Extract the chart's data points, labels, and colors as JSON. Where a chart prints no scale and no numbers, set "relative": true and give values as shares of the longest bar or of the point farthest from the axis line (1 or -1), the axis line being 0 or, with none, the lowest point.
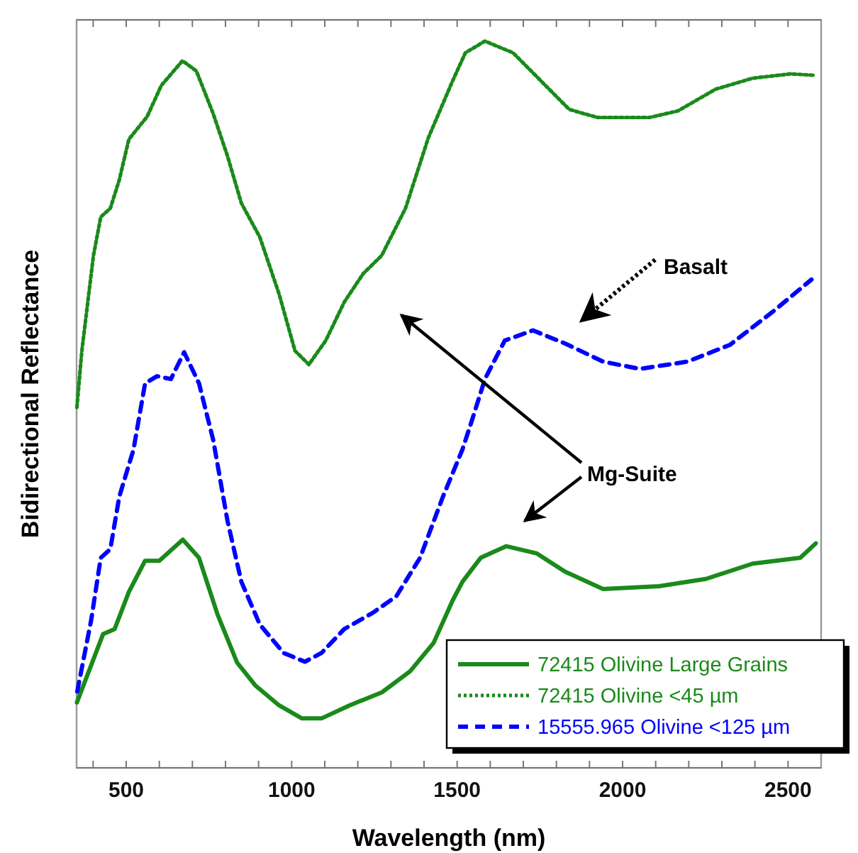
{
  "chart_data": {
    "type": "line",
    "relative": true,
    "xlabel": "Wavelength (nm)",
    "ylabel": "Bidirectional Reflectance",
    "xlim": [
      350,
      2600
    ],
    "xticks": [
      {
        "value": 400,
        "label": null
      },
      500,
      {
        "value": 600,
        "label": null
      },
      {
        "value": 700,
        "label": null
      },
      {
        "value": 800,
        "label": null
      },
      {
        "value": 900,
        "label": null
      },
      1000,
      {
        "value": 1100,
        "label": null
      },
      {
        "value": 1200,
        "label": null
      },
      {
        "value": 1300,
        "label": null
      },
      {
        "value": 1400,
        "label": null
      },
      1500,
      {
        "value": 1600,
        "label": null
      },
      {
        "value": 1700,
        "label": null
      },
      {
        "value": 1800,
        "label": null
      },
      {
        "value": 1900,
        "label": null
      },
      2000,
      {
        "value": 2100,
        "label": null
      },
      {
        "value": 2200,
        "label": null
      },
      {
        "value": 2300,
        "label": null
      },
      {
        "value": 2400,
        "label": null
      },
      2500
    ],
    "legend": "bottom right",
    "series": [
      {
        "name": "72415 Olivine Large Grains",
        "color": "#1a8a1a",
        "line_style": "solid",
        "x": [
          351,
          430,
          465,
          508,
          557,
          600,
          671,
          720,
          776,
          835,
          891,
          962,
          1031,
          1090,
          1175,
          1273,
          1358,
          1429,
          1486,
          1516,
          1571,
          1648,
          1741,
          1826,
          1941,
          2111,
          2252,
          2393,
          2537,
          2584
        ],
        "values": [
          0.09,
          0.184,
          0.191,
          0.242,
          0.285,
          0.285,
          0.314,
          0.289,
          0.211,
          0.145,
          0.113,
          0.086,
          0.068,
          0.068,
          0.086,
          0.104,
          0.133,
          0.172,
          0.23,
          0.256,
          0.289,
          0.305,
          0.295,
          0.27,
          0.246,
          0.25,
          0.26,
          0.281,
          0.289,
          0.309
        ]
      },
      {
        "name": "72415 Olivine <45 µm",
        "color": "#1a8a1a",
        "line_style": "dotted",
        "x": [
          351,
          366,
          401,
          423,
          452,
          479,
          508,
          563,
          606,
          670,
          712,
          763,
          806,
          848,
          904,
          962,
          1010,
          1052,
          1103,
          1159,
          1216,
          1272,
          1344,
          1413,
          1486,
          1525,
          1584,
          1669,
          1754,
          1839,
          1924,
          2082,
          2167,
          2282,
          2393,
          2508,
          2580
        ],
        "values": [
          0.496,
          0.574,
          0.705,
          0.758,
          0.77,
          0.809,
          0.865,
          0.896,
          0.939,
          0.973,
          0.959,
          0.9,
          0.842,
          0.777,
          0.73,
          0.652,
          0.574,
          0.555,
          0.588,
          0.641,
          0.68,
          0.705,
          0.77,
          0.867,
          0.945,
          0.984,
          1.0,
          0.984,
          0.945,
          0.906,
          0.895,
          0.895,
          0.904,
          0.934,
          0.949,
          0.955,
          0.953
        ]
      },
      {
        "name": "15555.965 Olivine <125 µm",
        "color": "#0000ff",
        "line_style": "dashed",
        "x": [
          352,
          394,
          423,
          452,
          479,
          522,
          557,
          593,
          635,
          675,
          720,
          763,
          806,
          848,
          904,
          976,
          1040,
          1090,
          1159,
          1244,
          1316,
          1388,
          1457,
          1516,
          1544,
          1584,
          1644,
          1729,
          1826,
          1941,
          2052,
          2196,
          2324,
          2452,
          2571
        ],
        "values": [
          0.105,
          0.203,
          0.289,
          0.301,
          0.373,
          0.438,
          0.529,
          0.539,
          0.535,
          0.572,
          0.529,
          0.451,
          0.34,
          0.256,
          0.197,
          0.158,
          0.146,
          0.158,
          0.191,
          0.213,
          0.236,
          0.289,
          0.373,
          0.438,
          0.477,
          0.535,
          0.588,
          0.602,
          0.584,
          0.559,
          0.549,
          0.559,
          0.582,
          0.627,
          0.672
        ]
      }
    ],
    "annotations": [
      "Basalt",
      "Mg-Suite"
    ]
  }
}
